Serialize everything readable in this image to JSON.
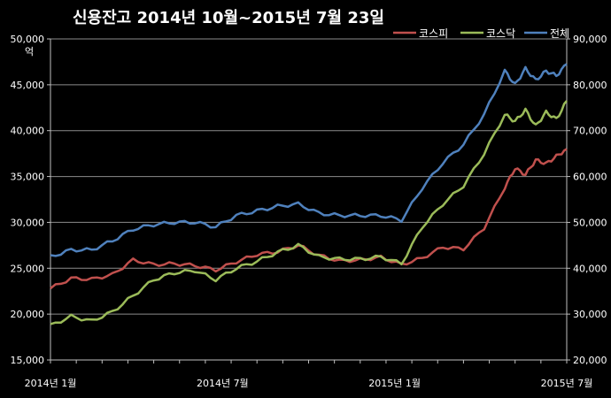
{
  "chart_data": {
    "type": "line",
    "title": "신용잔고 2014년 10월~2015년 7월 23일",
    "ylabel_left": "억",
    "ylim_left": [
      15000,
      50000
    ],
    "ylim_right": [
      20000,
      90000
    ],
    "yticks_left": [
      "15,000",
      "20,000",
      "25,000",
      "30,000",
      "35,000",
      "40,000",
      "45,000",
      "50,000"
    ],
    "yticks_right": [
      "20,000",
      "30,000",
      "40,000",
      "50,000",
      "60,000",
      "70,000",
      "80,000",
      "90,000"
    ],
    "xticks": [
      "2014년 1월",
      "2014년 7월",
      "2015년 1월",
      "2015년 7월"
    ],
    "grid": true,
    "legend_position": "top-right",
    "series": [
      {
        "name": "코스피",
        "axis": "left",
        "color": "#c0504d",
        "x": [
          0,
          4,
          8,
          12,
          16,
          20,
          24,
          28,
          32,
          36,
          40,
          44,
          48,
          52,
          56,
          60,
          64,
          68,
          72,
          76,
          80,
          84,
          88,
          90,
          92,
          94,
          96,
          98,
          100
        ],
        "values": [
          22800,
          23900,
          23800,
          24300,
          25900,
          25400,
          25500,
          25300,
          24800,
          25700,
          26500,
          26800,
          27500,
          26400,
          25800,
          25900,
          26200,
          25400,
          26100,
          27300,
          27100,
          29400,
          33800,
          35900,
          35200,
          36800,
          36400,
          37200,
          38000
        ]
      },
      {
        "name": "코스닥",
        "axis": "right",
        "color": "#9bbb59",
        "x": [
          0,
          4,
          8,
          12,
          16,
          20,
          24,
          28,
          32,
          36,
          40,
          44,
          48,
          52,
          56,
          60,
          64,
          68,
          72,
          76,
          80,
          84,
          88,
          90,
          92,
          94,
          96,
          98,
          100
        ],
        "values": [
          27500,
          29500,
          28500,
          30500,
          34000,
          37500,
          39000,
          39500,
          37500,
          40000,
          41500,
          43500,
          45000,
          42500,
          42000,
          42000,
          42500,
          41000,
          49000,
          54000,
          58000,
          65000,
          73500,
          72000,
          74500,
          71000,
          74000,
          72500,
          76500
        ]
      },
      {
        "name": "전체",
        "axis": "right",
        "color": "#4f81bd",
        "x": [
          0,
          4,
          8,
          12,
          16,
          20,
          24,
          28,
          32,
          36,
          40,
          44,
          48,
          52,
          56,
          60,
          64,
          68,
          72,
          76,
          80,
          84,
          88,
          90,
          92,
          94,
          96,
          98,
          100
        ],
        "values": [
          42500,
          44000,
          44000,
          46000,
          48500,
          49500,
          50000,
          50000,
          49000,
          51500,
          52500,
          53500,
          54000,
          52000,
          51500,
          51500,
          51500,
          50500,
          57500,
          63000,
          67000,
          73500,
          83000,
          80000,
          83500,
          81000,
          83000,
          82000,
          84500
        ]
      }
    ]
  }
}
